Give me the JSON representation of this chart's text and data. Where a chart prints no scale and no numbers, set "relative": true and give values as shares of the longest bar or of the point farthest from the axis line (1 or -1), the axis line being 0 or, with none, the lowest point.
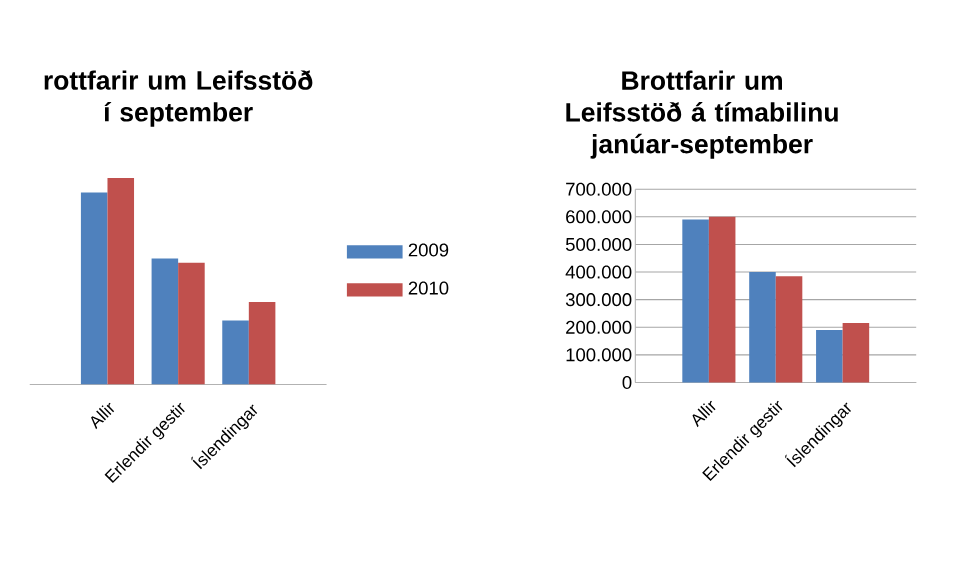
{
  "chart_data": [
    {
      "type": "bar",
      "title": "rottfarir um Leifsstöð í september",
      "categories": [
        "Allir",
        "Erlendir gestir",
        "Íslendingar"
      ],
      "relative": true,
      "legend": "right",
      "series": [
        {
          "name": "2009",
          "color": "#4f81bd",
          "values": [
            0.93,
            0.61,
            0.31
          ]
        },
        {
          "name": "2010",
          "color": "#c0504d",
          "values": [
            1,
            0.59,
            0.4
          ]
        }
      ]
    },
    {
      "type": "bar",
      "title": "Brottfarir um Leifsstöð á tímabilinu janúar-september",
      "categories": [
        "Allir",
        "Erlendir gestir",
        "Íslendingar"
      ],
      "ylim": [
        0,
        700000
      ],
      "grid": "y",
      "yticks": [
        {
          "value": 0,
          "label": "0"
        },
        {
          "value": 100000,
          "label": "100.000"
        },
        {
          "value": 200000,
          "label": "200.000"
        },
        {
          "value": 300000,
          "label": "300.000"
        },
        {
          "value": 400000,
          "label": "400.000"
        },
        {
          "value": 500000,
          "label": "500.000"
        },
        {
          "value": 600000,
          "label": "600.000"
        },
        {
          "value": 700000,
          "label": "700.000"
        }
      ],
      "series": [
        {
          "color": "#4f81bd",
          "values": [
            590000,
            400000,
            190000
          ]
        },
        {
          "color": "#c0504d",
          "values": [
            600000,
            385000,
            215000
          ]
        }
      ]
    }
  ]
}
